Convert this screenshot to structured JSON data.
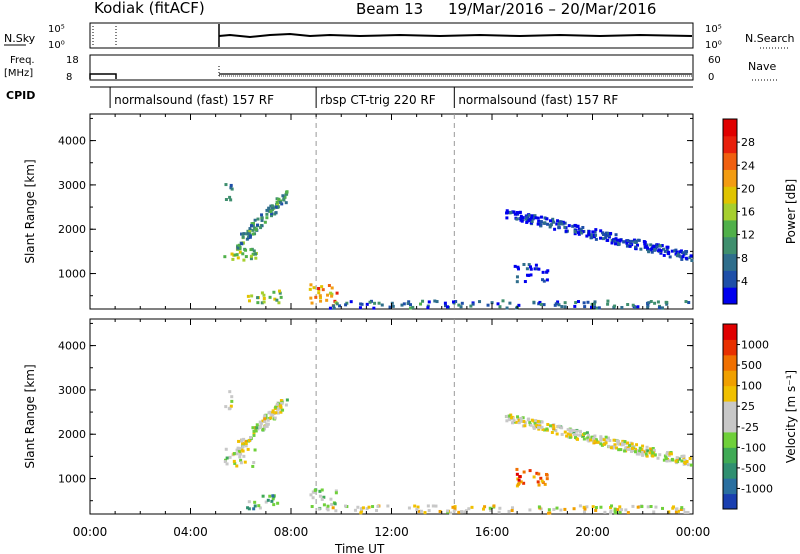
{
  "header": {
    "station": "Kodiak",
    "mode": "(fitACF)",
    "beam": "Beam 13",
    "date_range": "19/Mar/2016 – 20/Mar/2016"
  },
  "side_labels": {
    "nsky": "N.Sky",
    "nsearch": "N.Search",
    "freq_top": "Freq.",
    "freq_unit": "[MHz]",
    "nave": "Nave",
    "cpid": "CPID"
  },
  "small_panels": {
    "nsky_left_ticks": [
      "10^5",
      "10^0"
    ],
    "nsky_right_ticks": [
      "10^5",
      "10^0"
    ],
    "freq_left_ticks": [
      "18",
      "8"
    ],
    "freq_right_ticks": [
      "60",
      "0"
    ]
  },
  "cpid_segments": [
    {
      "label": "normalsound (fast) 157 RF",
      "start": 0.8,
      "end": 9.0
    },
    {
      "label": "rbsp CT-trig 220 RF",
      "start": 9.0,
      "end": 14.5
    },
    {
      "label": "normalsound (fast) 157 RF",
      "start": 14.5,
      "end": 24.0
    }
  ],
  "chart_data": [
    {
      "type": "heatmap",
      "name": "power",
      "ylabel": "Slant Range [km]",
      "xlabel": "Time UT",
      "x_ticks": [
        "00:00",
        "04:00",
        "08:00",
        "12:00",
        "16:00",
        "20:00",
        "00:00"
      ],
      "xlim_hours": [
        0,
        24
      ],
      "y_ticks": [
        1000,
        2000,
        3000,
        4000
      ],
      "ylim_km": [
        200,
        4600
      ],
      "colorbar": {
        "label": "Power [dB]",
        "ticks": [
          "4",
          "8",
          "12",
          "16",
          "20",
          "24",
          "28"
        ],
        "colors": [
          "#0000ee",
          "#1e4fa8",
          "#2f6e8c",
          "#3f8f6e",
          "#50b04a",
          "#a6cf2e",
          "#e0c400",
          "#f39c12",
          "#f06010",
          "#e8200c",
          "#e00000"
        ]
      },
      "scatter_regions": [
        {
          "t0": 5.3,
          "t1": 5.6,
          "r0": 2600,
          "r1": 3100,
          "level": 0.25
        },
        {
          "t0": 5.3,
          "t1": 6.6,
          "r0": 1300,
          "r1": 1700,
          "level": 0.45
        },
        {
          "t0": 5.8,
          "t1": 7.8,
          "r0": 1700,
          "r1": 2800,
          "level": 0.3
        },
        {
          "t0": 6.2,
          "t1": 7.6,
          "r0": 350,
          "r1": 650,
          "level": 0.45
        },
        {
          "t0": 8.7,
          "t1": 9.8,
          "r0": 300,
          "r1": 800,
          "level": 0.7
        },
        {
          "t0": 9.5,
          "t1": 23.8,
          "r0": 250,
          "r1": 420,
          "level": 0.2
        },
        {
          "t0": 16.5,
          "t1": 23.9,
          "r0": 1400,
          "r1": 2400,
          "level": 0.1
        },
        {
          "t0": 16.8,
          "t1": 18.2,
          "r0": 850,
          "r1": 1250,
          "level": 0.1
        }
      ]
    },
    {
      "type": "heatmap",
      "name": "velocity",
      "ylabel": "Slant Range [km]",
      "xlabel": "Time UT",
      "x_ticks": [
        "00:00",
        "04:00",
        "08:00",
        "12:00",
        "16:00",
        "20:00",
        "00:00"
      ],
      "xlim_hours": [
        0,
        24
      ],
      "y_ticks": [
        1000,
        2000,
        3000,
        4000
      ],
      "ylim_km": [
        200,
        4600
      ],
      "colorbar": {
        "label": "Velocity [m s⁻¹]",
        "ticks": [
          "1000",
          "500",
          "100",
          "25",
          "-25",
          "-100",
          "-500",
          "-1000"
        ],
        "colors": [
          "#1a3fb0",
          "#2a6fa0",
          "#2f8f70",
          "#3faa55",
          "#6fd03a",
          "#c8c8c8",
          "#c8c8c8",
          "#f0c000",
          "#f0a000",
          "#f07000",
          "#e83000",
          "#e00000"
        ]
      },
      "scatter_regions": [
        {
          "t0": 5.3,
          "t1": 5.6,
          "r0": 2600,
          "r1": 3100,
          "level": 0.5
        },
        {
          "t0": 5.3,
          "t1": 6.6,
          "r0": 1300,
          "r1": 1700,
          "level": 0.5
        },
        {
          "t0": 5.8,
          "t1": 7.8,
          "r0": 1700,
          "r1": 2800,
          "level": 0.5
        },
        {
          "t0": 6.2,
          "t1": 7.6,
          "r0": 350,
          "r1": 650,
          "level": 0.3
        },
        {
          "t0": 8.7,
          "t1": 9.8,
          "r0": 300,
          "r1": 800,
          "level": 0.4
        },
        {
          "t0": 9.5,
          "t1": 23.8,
          "r0": 250,
          "r1": 420,
          "level": 0.55
        },
        {
          "t0": 16.5,
          "t1": 23.9,
          "r0": 1400,
          "r1": 2400,
          "level": 0.5
        },
        {
          "t0": 16.8,
          "t1": 18.2,
          "r0": 850,
          "r1": 1250,
          "level": 0.75
        }
      ]
    }
  ],
  "xlabel": "Time UT",
  "x_ticks": [
    "00:00",
    "04:00",
    "08:00",
    "12:00",
    "16:00",
    "20:00",
    "00:00"
  ]
}
